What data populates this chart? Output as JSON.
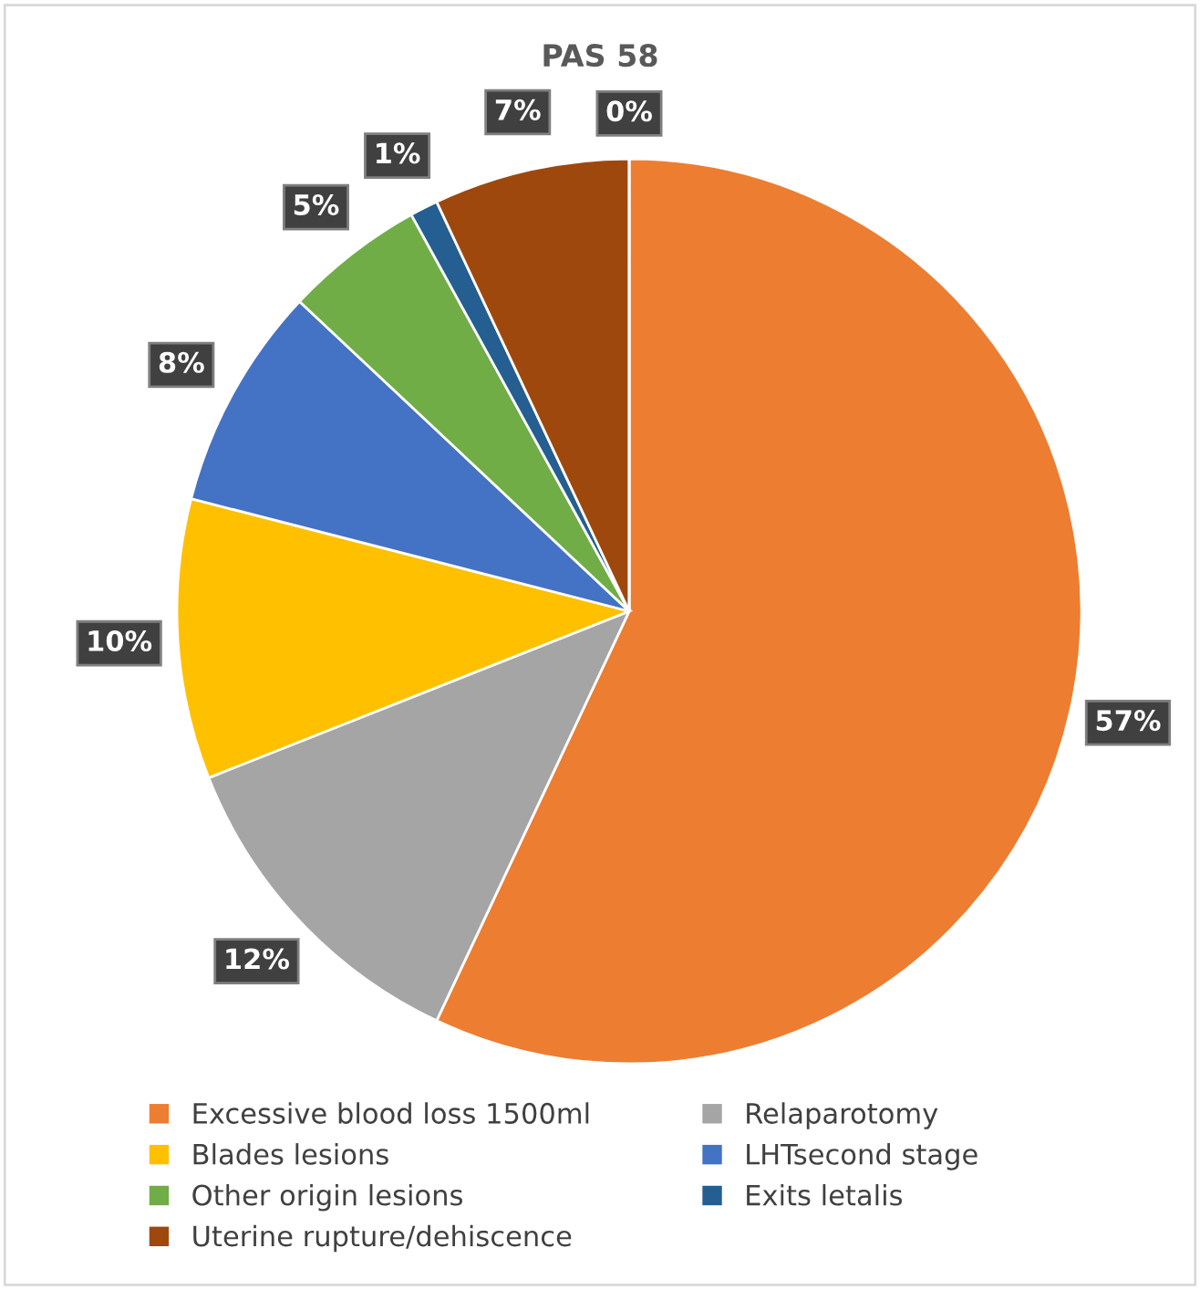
{
  "chart_data": {
    "type": "pie",
    "title": "PAS 58",
    "categories": [
      "Excessive blood loss 1500ml",
      "Relaparotomy",
      "Blades lesions",
      "LHTsecond stage",
      "Other origin lesions",
      "Exits letalis",
      "Uterine rupture/dehiscence",
      null
    ],
    "values": [
      57,
      12,
      10,
      8,
      5,
      1,
      7,
      0
    ],
    "colors": [
      "#ed7d31",
      "#a5a5a5",
      "#ffc000",
      "#4472c4",
      "#70ad47",
      "#255e91",
      "#9e480e",
      "#636363"
    ],
    "value_labels": [
      "57%",
      "12%",
      "10%",
      "8%",
      "5%",
      "1%",
      "7%",
      "0%"
    ],
    "legend": "bottom"
  }
}
